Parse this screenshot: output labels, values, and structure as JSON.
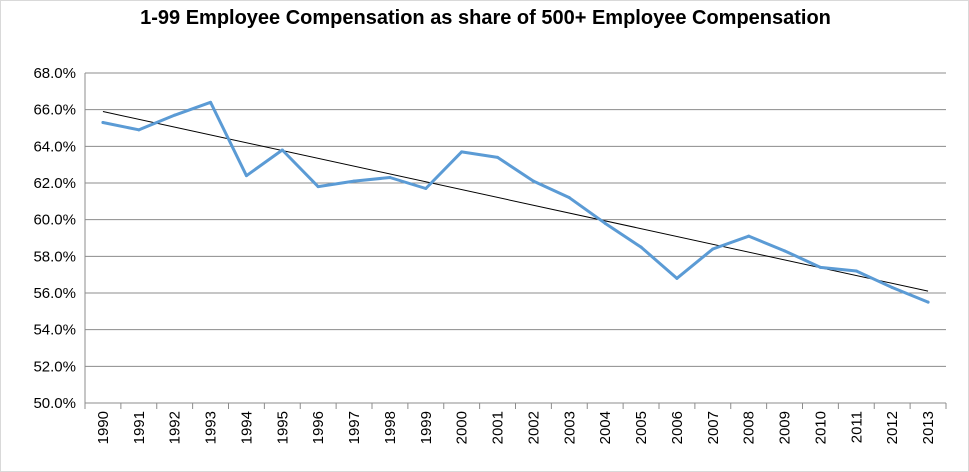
{
  "chart_data": {
    "type": "line",
    "title": "1-99 Employee Compensation as share of 500+ Employee Compensation",
    "xlabel": "",
    "ylabel": "",
    "categories": [
      "1990",
      "1991",
      "1992",
      "1993",
      "1994",
      "1995",
      "1996",
      "1997",
      "1998",
      "1999",
      "2000",
      "2001",
      "2002",
      "2003",
      "2004",
      "2005",
      "2006",
      "2007",
      "2008",
      "2009",
      "2010",
      "2011",
      "2012",
      "2013"
    ],
    "series": [
      {
        "values": [
          65.3,
          64.9,
          65.7,
          66.4,
          62.4,
          63.8,
          61.8,
          62.1,
          62.3,
          61.7,
          63.7,
          63.4,
          62.1,
          61.2,
          59.8,
          58.5,
          56.8,
          58.4,
          59.1,
          58.3,
          57.4,
          57.2,
          56.3,
          55.5
        ],
        "color": "#5b9bd5"
      }
    ],
    "trendline": {
      "type": "linear",
      "start_value": 65.9,
      "end_value": 56.1,
      "color": "#000000"
    },
    "ylim": [
      50.0,
      68.0
    ],
    "yticks": [
      "50.0%",
      "52.0%",
      "54.0%",
      "56.0%",
      "58.0%",
      "60.0%",
      "62.0%",
      "64.0%",
      "66.0%",
      "68.0%"
    ],
    "ytick_step": 2.0,
    "grid": true,
    "legend": "none",
    "x_tick_rotation": "vertical"
  }
}
